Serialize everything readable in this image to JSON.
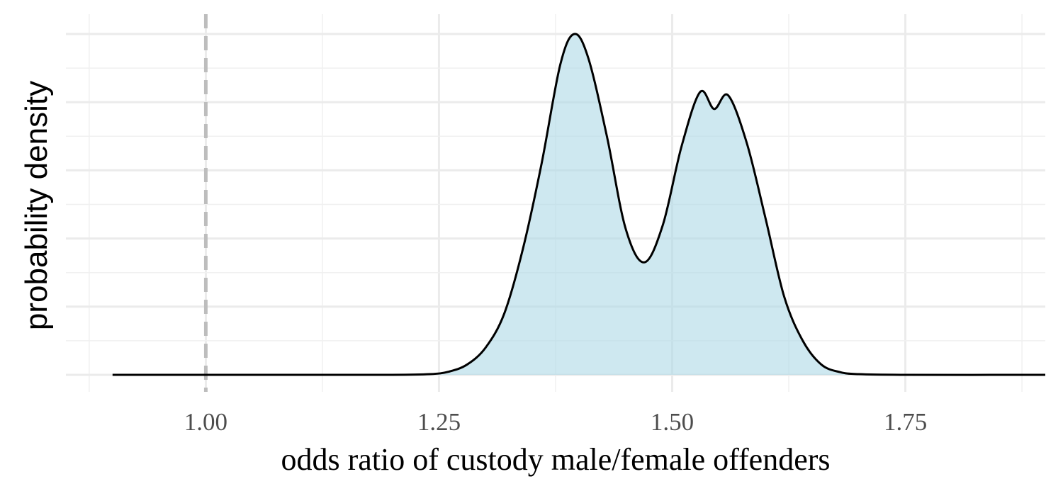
{
  "chart_data": {
    "type": "area",
    "title": "",
    "xlabel": "odds ratio of custody male/female offenders",
    "ylabel": "probability density",
    "xlim": [
      0.85,
      1.9
    ],
    "ylim": [
      0,
      1.05
    ],
    "x_ticks": [
      1.0,
      1.25,
      1.5,
      1.75
    ],
    "x_tick_labels": [
      "1.00",
      "1.25",
      "1.50",
      "1.75"
    ],
    "y_ticks": [
      0.1,
      0.2,
      0.3,
      0.4,
      0.5,
      0.6,
      0.7,
      0.8,
      0.9,
      1.0
    ],
    "y_tick_labels": [],
    "grid": true,
    "legend": "none",
    "reference_line": {
      "x": 1.0,
      "style": "dashed",
      "color": "#bdbdbd"
    },
    "fill_color": "#add8e6",
    "line_color": "#000000",
    "series": [
      {
        "x": [
          0.9,
          1.0,
          1.1,
          1.2,
          1.24,
          1.26,
          1.28,
          1.3,
          1.32,
          1.34,
          1.36,
          1.38,
          1.395,
          1.41,
          1.43,
          1.45,
          1.47,
          1.49,
          1.51,
          1.53,
          1.545,
          1.56,
          1.58,
          1.6,
          1.62,
          1.64,
          1.66,
          1.68,
          1.7,
          1.75,
          1.9
        ],
        "y": [
          0.0,
          0.0,
          0.0,
          0.0,
          0.002,
          0.009,
          0.03,
          0.08,
          0.18,
          0.37,
          0.62,
          0.91,
          1.0,
          0.93,
          0.7,
          0.43,
          0.33,
          0.44,
          0.67,
          0.83,
          0.78,
          0.82,
          0.68,
          0.46,
          0.23,
          0.1,
          0.03,
          0.008,
          0.002,
          0.0,
          0.0
        ]
      }
    ]
  }
}
